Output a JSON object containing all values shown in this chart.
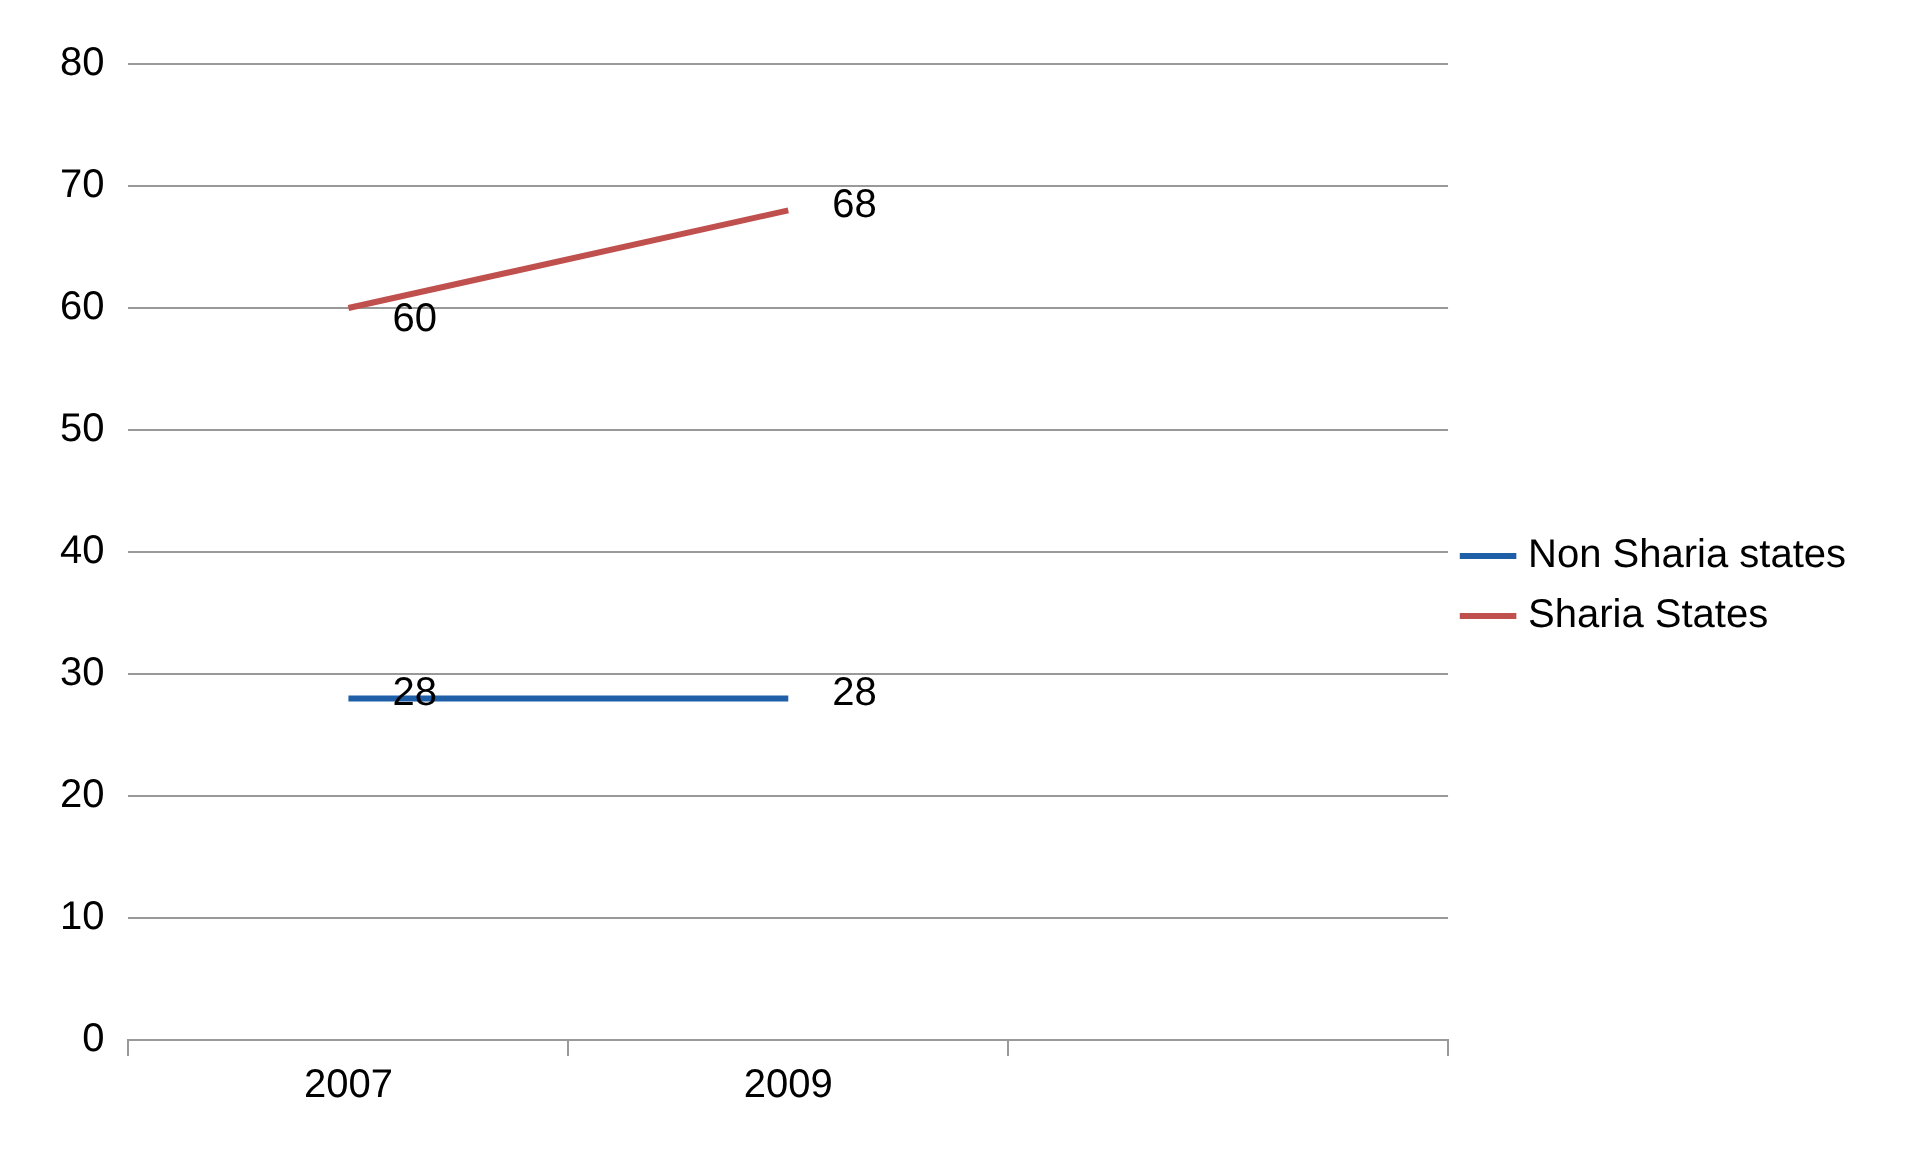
{
  "chart_data": {
    "type": "line",
    "categories": [
      "2007",
      "2009",
      null
    ],
    "series": [
      {
        "name": "Non Sharia states",
        "color": "#1f5fa8",
        "values": [
          28,
          28,
          null
        ]
      },
      {
        "name": "Sharia States",
        "color": "#c0504d",
        "values": [
          60,
          68,
          null
        ]
      }
    ],
    "ylim": [
      0,
      80
    ],
    "yticks": [
      0,
      10,
      20,
      30,
      40,
      50,
      60,
      70,
      80
    ],
    "grid": "y",
    "legend": "right",
    "data_labels": true,
    "marker": "none"
  }
}
